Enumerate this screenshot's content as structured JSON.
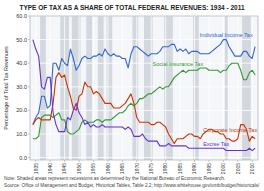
{
  "chart_data": {
    "type": "line",
    "title": "TYPE OF TAX AS A SHARE OF TOTAL FEDERAL REVENUES: 1934 - 2011",
    "y_label": "Percentage of Total Tax Revenues",
    "annotations": [
      "Note: Shaded areas represent recessions as determined by the National Bureau of Economic Research.",
      "Source: Office of Management and Budget, Historical Tables, Table 2.2; http://www.whitehouse.gov/omb/budget/historicals/"
    ],
    "x": [
      1934,
      1935,
      1936,
      1937,
      1938,
      1939,
      1940,
      1941,
      1942,
      1943,
      1944,
      1945,
      1946,
      1947,
      1948,
      1949,
      1950,
      1951,
      1952,
      1953,
      1954,
      1955,
      1956,
      1957,
      1958,
      1959,
      1960,
      1961,
      1962,
      1963,
      1964,
      1965,
      1966,
      1967,
      1968,
      1969,
      1970,
      1971,
      1972,
      1973,
      1974,
      1975,
      1976,
      1977,
      1978,
      1979,
      1980,
      1981,
      1982,
      1983,
      1984,
      1985,
      1986,
      1987,
      1988,
      1989,
      1990,
      1991,
      1992,
      1993,
      1994,
      1995,
      1996,
      1997,
      1998,
      1999,
      2000,
      2001,
      2002,
      2003,
      2004,
      2005,
      2006,
      2007,
      2008,
      2009,
      2010,
      2011
    ],
    "series": [
      {
        "name": "Individual Income Tax",
        "color": "#3366CC",
        "values": [
          14,
          17,
          19,
          26,
          26,
          21,
          22,
          40,
          40,
          37,
          42,
          40,
          39,
          46,
          42,
          37,
          39,
          42,
          43,
          42,
          42,
          43,
          43,
          44,
          43,
          46,
          44,
          43,
          44,
          43,
          43,
          42,
          42,
          38,
          44,
          47,
          47,
          46,
          45,
          44,
          43,
          44,
          44,
          44,
          45,
          47,
          47,
          47,
          48,
          48,
          45,
          46,
          45,
          46,
          44,
          45,
          45,
          45,
          44,
          44,
          44,
          44,
          45,
          46,
          47,
          48,
          50,
          50,
          47,
          45,
          43,
          43,
          43,
          45,
          45,
          43,
          42,
          47
        ]
      },
      {
        "name": "Social Insurance Tax",
        "color": "#339933",
        "values": [
          8,
          8,
          9,
          17,
          18,
          18,
          18,
          17,
          18,
          19,
          16,
          16,
          11,
          10,
          10,
          11,
          12,
          15,
          16,
          15,
          15,
          15,
          16,
          16,
          15,
          16,
          16,
          16,
          17,
          18,
          19,
          19,
          20,
          22,
          23,
          22,
          23,
          25,
          25,
          26,
          27,
          27,
          28,
          29,
          30,
          29,
          30,
          30,
          32,
          34,
          35,
          36,
          37,
          36,
          37,
          37,
          37,
          37,
          38,
          38,
          38,
          37,
          37,
          37,
          37,
          36,
          37,
          37,
          39,
          40,
          40,
          40,
          37,
          33,
          33,
          36,
          37,
          35
        ]
      },
      {
        "name": "Corporate Income Tax",
        "color": "#CC3300",
        "values": [
          14,
          16,
          17,
          16,
          16,
          16,
          16,
          23,
          34,
          36,
          34,
          35,
          30,
          26,
          21,
          20,
          26,
          27,
          32,
          30,
          30,
          27,
          28,
          27,
          25,
          23,
          23,
          23,
          21,
          21,
          21,
          22,
          23,
          25,
          27,
          23,
          17,
          15,
          15,
          15,
          15,
          14,
          14,
          15,
          15,
          14,
          13,
          10,
          8,
          6,
          8,
          8,
          8,
          9,
          10,
          10,
          9,
          9,
          8,
          10,
          11,
          12,
          12,
          11,
          11,
          10,
          10,
          8,
          8,
          7,
          7,
          8,
          14,
          14,
          12,
          7,
          9,
          8
        ]
      },
      {
        "name": "Excise Tax",
        "color": "#6633CC",
        "values": [
          50,
          46,
          43,
          30,
          29,
          34,
          34,
          19,
          14,
          11,
          11,
          11,
          17,
          16,
          20,
          23,
          19,
          17,
          14,
          15,
          13,
          14,
          13,
          13,
          14,
          13,
          13,
          13,
          13,
          13,
          13,
          13,
          12,
          13,
          12,
          9,
          9,
          9,
          10,
          8,
          7,
          7,
          7,
          7,
          5,
          5,
          5,
          6,
          5,
          5,
          5,
          5,
          5,
          5,
          4,
          4,
          4,
          4,
          4,
          4,
          4,
          4,
          4,
          4,
          4,
          4,
          4,
          3,
          3,
          3,
          3,
          3,
          3,
          3,
          3,
          4,
          3,
          4
        ]
      }
    ],
    "recession_bands": [
      [
        1937,
        1938
      ],
      [
        1944,
        1946
      ],
      [
        1948,
        1950
      ],
      [
        1953,
        1954
      ],
      [
        1957,
        1958
      ],
      [
        1960,
        1961
      ],
      [
        1969,
        1970
      ],
      [
        1973,
        1975
      ],
      [
        1980,
        1980
      ],
      [
        1981,
        1982
      ],
      [
        1990,
        1991
      ],
      [
        2001,
        2001
      ],
      [
        2007,
        2009
      ]
    ],
    "xlim": [
      1933,
      2012
    ],
    "xticks": [
      1935,
      1940,
      1945,
      1950,
      1955,
      1960,
      1965,
      1970,
      1975,
      1980,
      1985,
      1990,
      1995,
      2000,
      2005,
      2010
    ],
    "ylim": [
      -1,
      60
    ],
    "yticks": [
      {
        "value": 0,
        "label": "0.0"
      },
      {
        "value": 10,
        "label": "10.0"
      },
      {
        "value": 20,
        "label": "20.0"
      },
      {
        "value": 30,
        "label": "30.0"
      },
      {
        "value": 40,
        "label": "40.0"
      },
      {
        "value": 50,
        "label": "50.0"
      },
      {
        "value": 60,
        "label": "60.0"
      }
    ],
    "grid": true
  }
}
